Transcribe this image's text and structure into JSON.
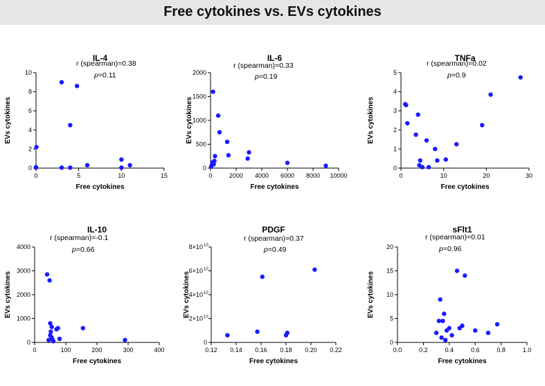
{
  "page": {
    "title": "Free cytokines vs. EVs cytokines"
  },
  "chart_data": [
    {
      "type": "scatter",
      "title": "IL-4",
      "xlabel": "Free cytokines",
      "ylabel": "EVs cytokines",
      "xlim": [
        0,
        15
      ],
      "ylim": [
        0,
        10
      ],
      "xticks": [
        "0",
        "5",
        "10",
        "15"
      ],
      "xtick_values": [
        0,
        5,
        10,
        15
      ],
      "yticks": [
        "0",
        "2",
        "4",
        "6",
        "8",
        "10"
      ],
      "ytick_values": [
        0,
        2,
        4,
        6,
        8,
        10
      ],
      "annotation": {
        "r_text": "r (spearman)=0.38",
        "p_prefix": "p",
        "p_value": "=0.11"
      },
      "color": "#1a1aff",
      "x": [
        0,
        0,
        0.05,
        3,
        3,
        4,
        4,
        4.8,
        6,
        10,
        10,
        11
      ],
      "y": [
        0.1,
        0.05,
        2.2,
        9.0,
        0.05,
        4.5,
        0.05,
        8.6,
        0.3,
        0.9,
        0.05,
        0.3
      ]
    },
    {
      "type": "scatter",
      "title": "IL-6",
      "xlabel": "Free cytokines",
      "ylabel": "EVs cytokines",
      "xlim": [
        0,
        10000
      ],
      "ylim": [
        0,
        2000
      ],
      "xticks": [
        "0",
        "2000",
        "4000",
        "6000",
        "8000",
        "10000"
      ],
      "xtick_values": [
        0,
        2000,
        4000,
        6000,
        8000,
        10000
      ],
      "yticks": [
        "0",
        "500",
        "1000",
        "1500",
        "2000"
      ],
      "ytick_values": [
        0,
        500,
        1000,
        1500,
        2000
      ],
      "annotation": {
        "r_text": "r (spearman)=0.33",
        "p_prefix": "p",
        "p_value": "=0.19"
      },
      "color": "#1a1aff",
      "x": [
        50,
        100,
        150,
        200,
        250,
        300,
        350,
        600,
        700,
        1300,
        1400,
        2900,
        3000,
        6000,
        9000
      ],
      "y": [
        30,
        60,
        120,
        1600,
        80,
        150,
        250,
        1100,
        750,
        550,
        270,
        200,
        330,
        110,
        50
      ]
    },
    {
      "type": "scatter",
      "title": "TNFa",
      "xlabel": "Free cytokines",
      "ylabel": "EVs cytokines",
      "xlim": [
        0,
        30
      ],
      "ylim": [
        0,
        5
      ],
      "xticks": [
        "0",
        "10",
        "20",
        "30"
      ],
      "xtick_values": [
        0,
        10,
        20,
        30
      ],
      "yticks": [
        "0",
        "1",
        "2",
        "3",
        "4",
        "5"
      ],
      "ytick_values": [
        0,
        1,
        2,
        3,
        4,
        5
      ],
      "annotation": {
        "r_text": "r (spearman)=0.02",
        "p_prefix": "p",
        "p_value": "=0.9"
      },
      "color": "#1a1aff",
      "x": [
        1,
        1.2,
        1.5,
        3.5,
        4,
        4.5,
        4.3,
        5,
        6,
        6.5,
        8,
        8.5,
        10.5,
        13,
        19,
        21,
        28
      ],
      "y": [
        3.35,
        3.3,
        2.35,
        1.75,
        2.8,
        0.4,
        0.15,
        0.05,
        1.45,
        0.05,
        1.0,
        0.4,
        0.45,
        1.25,
        2.25,
        3.85,
        4.75
      ]
    },
    {
      "type": "scatter",
      "title": "IL-10",
      "xlabel": "Free cytokines",
      "ylabel": "EVs cytokines",
      "xlim": [
        0,
        400
      ],
      "ylim": [
        0,
        4000
      ],
      "xticks": [
        "0",
        "100",
        "200",
        "300",
        "400"
      ],
      "xtick_values": [
        0,
        100,
        200,
        300,
        400
      ],
      "yticks": [
        "0",
        "1000",
        "2000",
        "3000",
        "4000"
      ],
      "ytick_values": [
        0,
        1000,
        2000,
        3000,
        4000
      ],
      "annotation": {
        "r_text": "r (spearman)=-0.1",
        "p_prefix": "p",
        "p_value": "=0.66"
      },
      "color": "#1a1aff",
      "x": [
        40,
        45,
        48,
        50,
        50,
        52,
        55,
        55,
        58,
        60,
        70,
        75,
        80,
        155,
        290
      ],
      "y": [
        2850,
        100,
        2600,
        800,
        300,
        450,
        200,
        650,
        100,
        50,
        550,
        600,
        150,
        600,
        100
      ],
      "x_more": []
    },
    {
      "type": "scatter",
      "title": "PDGF",
      "xlabel": "Free cytokines",
      "ylabel": "EVs cytokines",
      "xlim": [
        0.12,
        0.22
      ],
      "ylim": [
        0,
        80000000000.0
      ],
      "xticks": [
        "0.12",
        "0.14",
        "0.16",
        "0.18",
        "0.20",
        "0.22"
      ],
      "xtick_values": [
        0.12,
        0.14,
        0.16,
        0.18,
        0.2,
        0.22
      ],
      "yticks": [
        "0",
        "2×10",
        "4×10",
        "6×10",
        "8×10"
      ],
      "ytick_exp": "10",
      "ytick_values": [
        0,
        20000000000.0,
        40000000000.0,
        60000000000.0,
        80000000000.0
      ],
      "annotation": {
        "r_text": "r (spearman)=0.37",
        "p_prefix": "p",
        "p_value": "=0.49"
      },
      "color": "#1a1aff",
      "x": [
        0.133,
        0.157,
        0.161,
        0.18,
        0.181,
        0.203
      ],
      "y": [
        6000000000.0,
        9000000000.0,
        55000000000.0,
        6000000000.0,
        8000000000.0,
        61000000000.0
      ]
    },
    {
      "type": "scatter",
      "title": "sFlt1",
      "xlabel": "Free cytokines",
      "ylabel": "EVs cytokines",
      "xlim": [
        0.0,
        1.0
      ],
      "ylim": [
        0,
        20
      ],
      "xticks": [
        "0.0",
        "0.2",
        "0.4",
        "0.6",
        "0.8",
        "1.0"
      ],
      "xtick_values": [
        0.0,
        0.2,
        0.4,
        0.6,
        0.8,
        1.0
      ],
      "yticks": [
        "0",
        "5",
        "10",
        "15",
        "20"
      ],
      "ytick_values": [
        0,
        5,
        10,
        15,
        20
      ],
      "annotation": {
        "r_text": "r (spearman)=0.01",
        "p_prefix": "p",
        "p_value": "=0.96"
      },
      "color": "#1a1aff",
      "x": [
        0.3,
        0.32,
        0.33,
        0.34,
        0.35,
        0.36,
        0.37,
        0.38,
        0.4,
        0.42,
        0.46,
        0.48,
        0.5,
        0.52,
        0.6,
        0.7,
        0.77
      ],
      "y": [
        2.0,
        4.5,
        9.0,
        1.0,
        4.5,
        6.0,
        0.5,
        2.5,
        3.0,
        1.5,
        15.0,
        3.0,
        3.5,
        14.0,
        2.5,
        2.0,
        3.8
      ]
    }
  ]
}
